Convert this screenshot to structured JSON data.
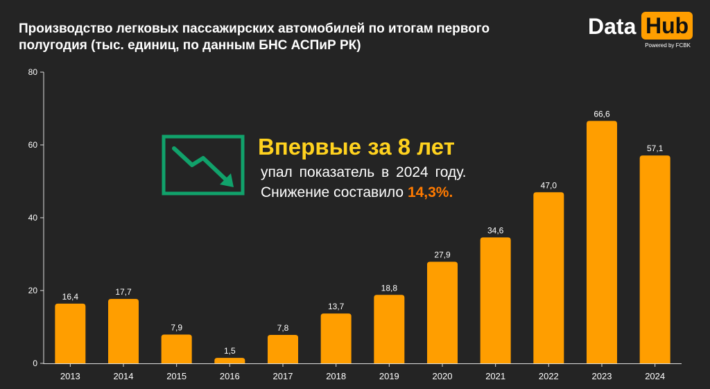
{
  "title": "Производство легковых пассажирских автомобилей по итогам первого полугодия (тыс. единиц, по данным БНС АСПиР РК)",
  "logo": {
    "part1": "Data",
    "part2": "Hub",
    "tagline": "Powered by FCBK"
  },
  "annotation": {
    "icon": "trend-down-icon",
    "headline": "Впервые за 8 лет",
    "line1": "упал показатель в 2024 году.",
    "line2_prefix": "Снижение составило ",
    "line2_highlight": "14,3%."
  },
  "colors": {
    "background": "#242424",
    "bar": "#ff9e00",
    "headline": "#ffd21f",
    "highlight": "#ff7a00",
    "icon": "#11a26b"
  },
  "chart_data": {
    "type": "bar",
    "categories": [
      "2013",
      "2014",
      "2015",
      "2016",
      "2017",
      "2018",
      "2019",
      "2020",
      "2021",
      "2022",
      "2023",
      "2024"
    ],
    "values": [
      16.4,
      17.7,
      7.9,
      1.5,
      7.8,
      13.7,
      18.8,
      27.9,
      34.6,
      47.0,
      66.6,
      57.1
    ],
    "value_labels": [
      "16,4",
      "17,7",
      "7,9",
      "1,5",
      "7,8",
      "13,7",
      "18,8",
      "27,9",
      "34,6",
      "47,0",
      "66,6",
      "57,1"
    ],
    "yticks": [
      0,
      20,
      40,
      60,
      80
    ],
    "ylim": [
      0,
      80
    ],
    "grid": false,
    "xlabel": "",
    "ylabel": ""
  }
}
